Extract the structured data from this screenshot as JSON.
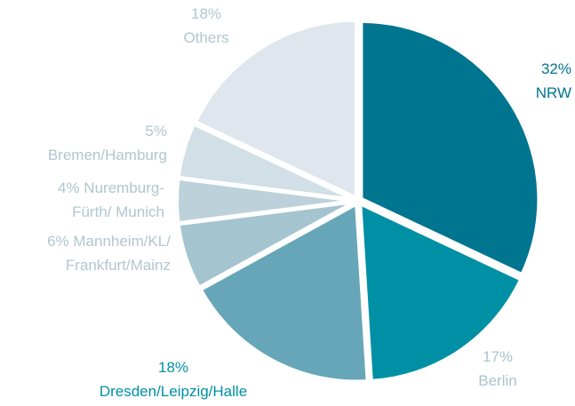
{
  "chart_data": {
    "type": "pie",
    "categories": [
      "NRW",
      "Berlin",
      "Dresden/Leipzig/Halle",
      "Mannheim/KL/ Frankfurt/Mainz",
      "Nuremburg-Fürth/ Munich",
      "Bremen/Hamburg",
      "Others"
    ],
    "values": [
      32,
      17,
      18,
      6,
      4,
      5,
      18
    ],
    "value_labels": [
      "32%",
      "17%",
      "18%",
      "6%",
      "4%",
      "5%",
      "18%"
    ],
    "colors": [
      "#00758f",
      "#0090a5",
      "#66a6b8",
      "#a4c4cf",
      "#bdd1da",
      "#d1dfe6",
      "#dfe6ed"
    ],
    "label_colors": [
      "#00758f",
      "#a9c4cf",
      "#0090a5",
      "#b2c6cf",
      "#b2c6cf",
      "#b2c6cf",
      "#b2c6cf"
    ]
  }
}
